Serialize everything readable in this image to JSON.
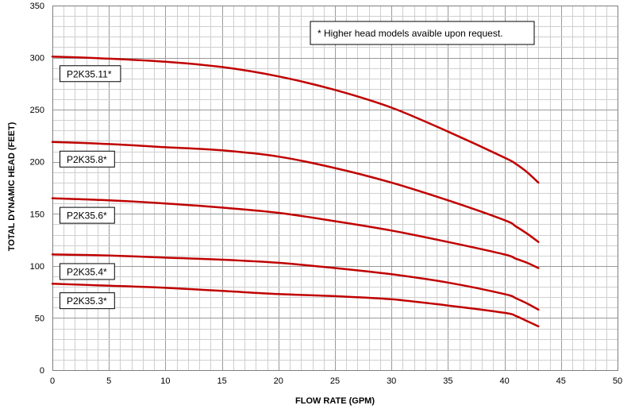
{
  "chart_data": {
    "type": "line",
    "title": "",
    "xlabel": "FLOW RATE (GPM)",
    "ylabel": "TOTAL DYNAMIC HEAD (FEET)",
    "xlim": [
      0,
      50
    ],
    "ylim": [
      0,
      350
    ],
    "x_ticks": [
      0,
      5,
      10,
      15,
      20,
      25,
      30,
      35,
      40,
      45,
      50
    ],
    "y_ticks": [
      0,
      50,
      100,
      150,
      200,
      250,
      300,
      350
    ],
    "grid": true,
    "line_color": "#c00000",
    "annotation": "* Higher head models avaible upon request.",
    "series": [
      {
        "name": "P2K35.11*",
        "x": [
          0,
          5,
          10,
          15,
          20,
          25,
          30,
          35,
          40,
          41,
          42,
          43
        ],
        "y": [
          301,
          299,
          296,
          291,
          282,
          269,
          252,
          229,
          204,
          198,
          190,
          180
        ]
      },
      {
        "name": "P2K35.8*",
        "x": [
          0,
          5,
          10,
          15,
          20,
          25,
          30,
          35,
          40,
          41,
          42,
          43
        ],
        "y": [
          219,
          217,
          214,
          211,
          205,
          194,
          180,
          163,
          144,
          138,
          131,
          123
        ]
      },
      {
        "name": "P2K35.6*",
        "x": [
          0,
          5,
          10,
          15,
          20,
          25,
          30,
          35,
          40,
          41,
          42,
          43
        ],
        "y": [
          165,
          163,
          160,
          156,
          151,
          143,
          134,
          123,
          111,
          107,
          103,
          98
        ]
      },
      {
        "name": "P2K35.4*",
        "x": [
          0,
          5,
          10,
          15,
          20,
          25,
          30,
          35,
          40,
          41,
          42,
          43
        ],
        "y": [
          111,
          110,
          108,
          106,
          103,
          98,
          92,
          84,
          73,
          69,
          64,
          58
        ]
      },
      {
        "name": "P2K35.3*",
        "x": [
          0,
          5,
          10,
          15,
          20,
          25,
          30,
          35,
          40,
          41,
          42,
          43
        ],
        "y": [
          83,
          81,
          79,
          76,
          73,
          71,
          68,
          62,
          55,
          52,
          47,
          42
        ]
      }
    ]
  }
}
